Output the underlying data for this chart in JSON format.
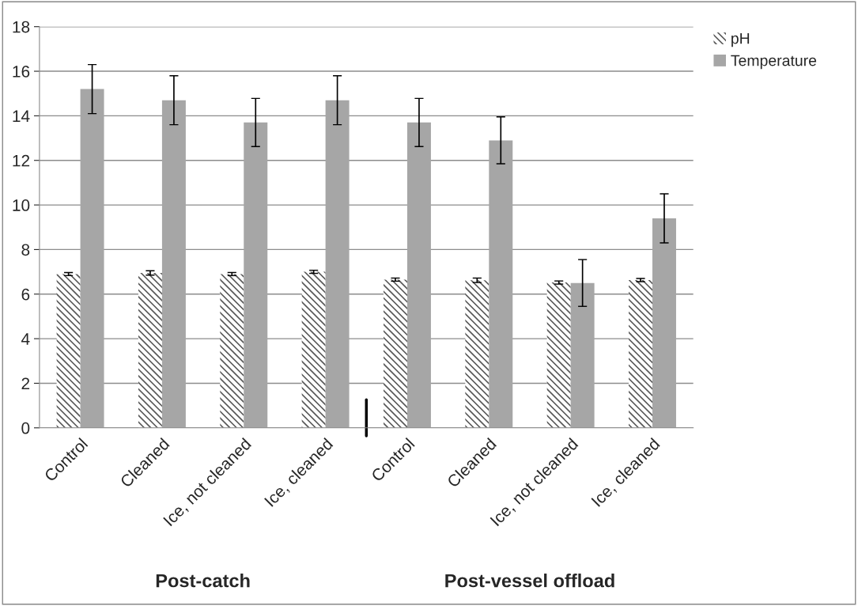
{
  "chart_data": {
    "type": "bar",
    "categories": [
      "Control",
      "Cleaned",
      "Ice, not cleaned",
      "Ice, cleaned",
      "Control",
      "Cleaned",
      "Ice, not cleaned",
      "Ice, cleaned"
    ],
    "series": [
      {
        "name": "pH",
        "color": "#595959",
        "values": [
          6.9,
          6.95,
          6.9,
          7.0,
          6.65,
          6.62,
          6.52,
          6.63
        ],
        "errors": [
          0.07,
          0.1,
          0.07,
          0.07,
          0.07,
          0.1,
          0.07,
          0.07
        ]
      },
      {
        "name": "Temperature",
        "color": "#a6a6a6",
        "values": [
          15.2,
          14.7,
          13.7,
          14.7,
          13.7,
          12.9,
          6.5,
          9.4
        ],
        "errors": [
          1.1,
          1.1,
          1.08,
          1.1,
          1.08,
          1.05,
          1.05,
          1.1
        ]
      }
    ],
    "ylim": [
      0,
      18
    ],
    "yticks": [
      0,
      2,
      4,
      6,
      8,
      10,
      12,
      14,
      16,
      18
    ],
    "grid": "y",
    "legend": "top right",
    "annotations": [
      "Post-catch",
      "Post-vessel offload"
    ]
  }
}
